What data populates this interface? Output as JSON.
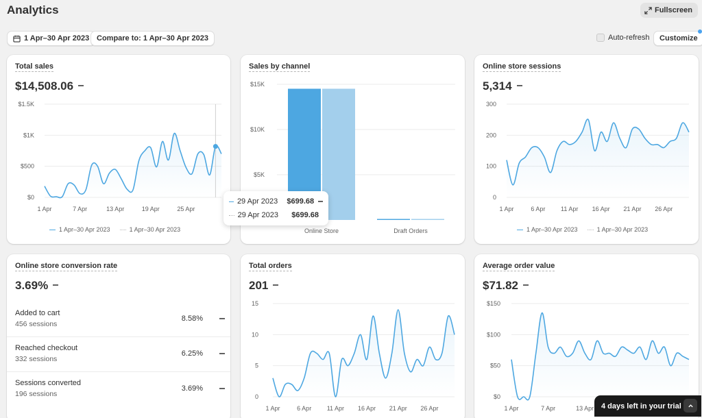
{
  "page": {
    "title": "Analytics",
    "fullscreen_label": "Fullscreen"
  },
  "filters": {
    "date_range": "1 Apr–30 Apr 2023",
    "compare_to": "Compare to: 1 Apr–30 Apr 2023",
    "auto_refresh_label": "Auto-refresh",
    "auto_refresh_checked": false,
    "customize_label": "Customize"
  },
  "colors": {
    "accent": "#4da7e1",
    "accent_light": "#a3cfec",
    "compare": "#c4c4c4"
  },
  "legend": {
    "current": "1 Apr–30 Apr 2023",
    "previous": "1 Apr–30 Apr 2023"
  },
  "cards": {
    "total_sales": {
      "title": "Total sales",
      "value": "$14,508.06"
    },
    "sales_by_channel": {
      "title": "Sales by channel"
    },
    "sessions": {
      "title": "Online store sessions",
      "value": "5,314"
    },
    "conversion": {
      "title": "Online store conversion rate",
      "value": "3.69%",
      "rows": [
        {
          "label": "Added to cart",
          "sub": "456 sessions",
          "pct": "8.58%"
        },
        {
          "label": "Reached checkout",
          "sub": "332 sessions",
          "pct": "6.25%"
        },
        {
          "label": "Sessions converted",
          "sub": "196 sessions",
          "pct": "3.69%"
        }
      ]
    },
    "total_orders": {
      "title": "Total orders",
      "value": "201"
    },
    "aov": {
      "title": "Average order value",
      "value": "$71.82"
    }
  },
  "tooltip": {
    "rows": [
      {
        "date": "29 Apr 2023",
        "value": "$699.68"
      },
      {
        "date": "29 Apr 2023",
        "value": "$699.68"
      }
    ]
  },
  "trial_banner": {
    "label": "4 days left in your trial"
  },
  "chart_data": [
    {
      "id": "total_sales",
      "type": "line",
      "y_ticks": [
        "$0",
        "$500",
        "$1K",
        "$1.5K"
      ],
      "ylim": [
        0,
        1500
      ],
      "x_ticks": [
        "1 Apr",
        "7 Apr",
        "13 Apr",
        "19 Apr",
        "25 Apr"
      ],
      "series": [
        {
          "values": [
            180,
            20,
            10,
            10,
            220,
            200,
            60,
            120,
            520,
            500,
            220,
            390,
            450,
            300,
            130,
            120,
            590,
            750,
            800,
            490,
            900,
            600,
            1030,
            750,
            480,
            380,
            700,
            690,
            360,
            820,
            700
          ]
        }
      ]
    },
    {
      "id": "sales_by_channel",
      "type": "bar",
      "categories": [
        "Online Store",
        "Draft Orders"
      ],
      "y_ticks": [
        "$5K",
        "$10K",
        "$15K"
      ],
      "ylim": [
        0,
        15000
      ],
      "series": [
        {
          "values": [
            14508.06,
            0
          ]
        },
        {
          "values": [
            14508.06,
            0
          ]
        }
      ]
    },
    {
      "id": "sessions",
      "type": "line",
      "y_ticks": [
        "0",
        "100",
        "200",
        "300"
      ],
      "ylim": [
        0,
        300
      ],
      "x_ticks": [
        "1 Apr",
        "6 Apr",
        "11 Apr",
        "16 Apr",
        "21 Apr",
        "26 Apr"
      ],
      "series": [
        {
          "values": [
            120,
            40,
            110,
            130,
            160,
            160,
            130,
            80,
            150,
            180,
            170,
            180,
            210,
            250,
            150,
            210,
            180,
            240,
            190,
            160,
            220,
            220,
            190,
            170,
            170,
            160,
            180,
            190,
            240,
            210
          ]
        }
      ]
    },
    {
      "id": "total_orders",
      "type": "line",
      "y_ticks": [
        "0",
        "5",
        "10",
        "15"
      ],
      "ylim": [
        0,
        15
      ],
      "x_ticks": [
        "1 Apr",
        "6 Apr",
        "11 Apr",
        "16 Apr",
        "21 Apr",
        "26 Apr"
      ],
      "series": [
        {
          "values": [
            3,
            0,
            2,
            2,
            1,
            3,
            7,
            7,
            6,
            7,
            0,
            6,
            5,
            7,
            10,
            6,
            13,
            7,
            3,
            7,
            14,
            7,
            4,
            6,
            5,
            8,
            6,
            7,
            13,
            10
          ]
        }
      ]
    },
    {
      "id": "aov",
      "type": "line",
      "y_ticks": [
        "$0",
        "$50",
        "$100",
        "$150"
      ],
      "ylim": [
        0,
        150
      ],
      "x_ticks": [
        "1 Apr",
        "7 Apr",
        "13 Apr"
      ],
      "series": [
        {
          "values": [
            60,
            0,
            0,
            0,
            70,
            135,
            80,
            70,
            80,
            65,
            70,
            90,
            70,
            60,
            90,
            70,
            70,
            65,
            80,
            75,
            70,
            80,
            60,
            90,
            70,
            80,
            50,
            70,
            65,
            60
          ]
        }
      ]
    }
  ]
}
